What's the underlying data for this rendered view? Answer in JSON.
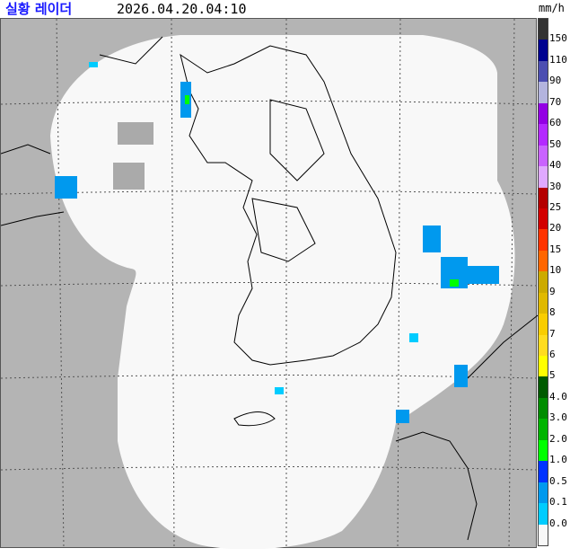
{
  "header": {
    "title": "실황 레이더",
    "timestamp": "2026.04.20.04:10",
    "unit": "mm/h"
  },
  "colors": {
    "background": "#b4b4b4",
    "coverage": "#f8f8f8",
    "title": "#1a1aff"
  },
  "legend": {
    "colors": [
      "#333333",
      "#000390",
      "#4c4eb1",
      "#b3b4de",
      "#9300e4",
      "#b329ff",
      "#c963ff",
      "#e0a9ff",
      "#b40000",
      "#d20000",
      "#ff3300",
      "#ff6600",
      "#ccaa00",
      "#e0b900",
      "#f9cd00",
      "#ffdc1f",
      "#ffff00",
      "#005a00",
      "#008c00",
      "#00b400",
      "#00ff00",
      "#0033ff",
      "#0099ee",
      "#00ccff",
      "#f8f8f8"
    ],
    "labels": [
      "150",
      "110",
      "90",
      "70",
      "60",
      "50",
      "40",
      "30",
      "25",
      "20",
      "15",
      "10",
      "9",
      "8",
      "7",
      "6",
      "5",
      "4.0",
      "3.0",
      "2.0",
      "1.0",
      "0.5",
      "0.1",
      "0.0"
    ]
  }
}
